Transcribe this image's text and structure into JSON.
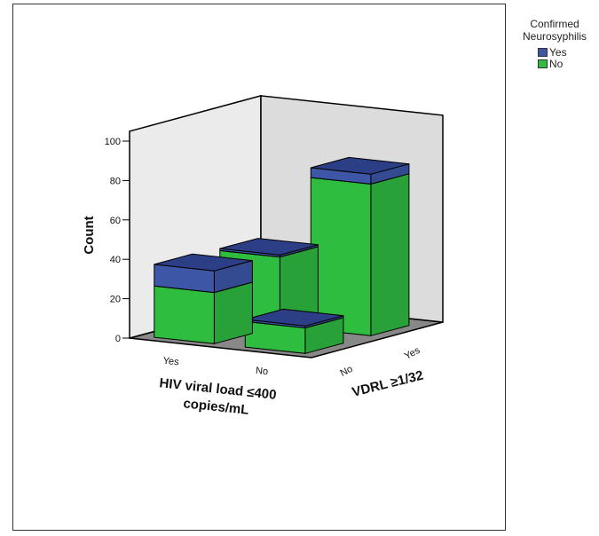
{
  "chart_data": {
    "type": "bar",
    "subtype": "3d-stacked-bar",
    "ylabel": "Count",
    "xlabel": "HIV viral load ≤400 copies/mL",
    "xlabel_line1": "HIV viral load ≤400",
    "xlabel_line2": "copies/mL",
    "zlabel": "VDRL ≥1/32",
    "x_categories": [
      "Yes",
      "No"
    ],
    "z_categories": [
      "No",
      "Yes"
    ],
    "y_ticks": [
      "0",
      "20",
      "40",
      "60",
      "80",
      "100"
    ],
    "ylim": [
      0,
      100
    ],
    "legend": {
      "title": "Confirmed\nNeurosyphilis",
      "position": "top-right",
      "entries": [
        {
          "label": "Yes",
          "color": "#3e56a6"
        },
        {
          "label": "No",
          "color": "#2ebd3e"
        }
      ]
    },
    "bars": [
      {
        "hiv": "Yes",
        "vdrl": "Yes",
        "no": 35,
        "yes": 1
      },
      {
        "hiv": "No",
        "vdrl": "Yes",
        "no": 77,
        "yes": 5
      },
      {
        "hiv": "Yes",
        "vdrl": "No",
        "no": 26,
        "yes": 11
      },
      {
        "hiv": "No",
        "vdrl": "No",
        "no": 13,
        "yes": 1
      }
    ]
  }
}
